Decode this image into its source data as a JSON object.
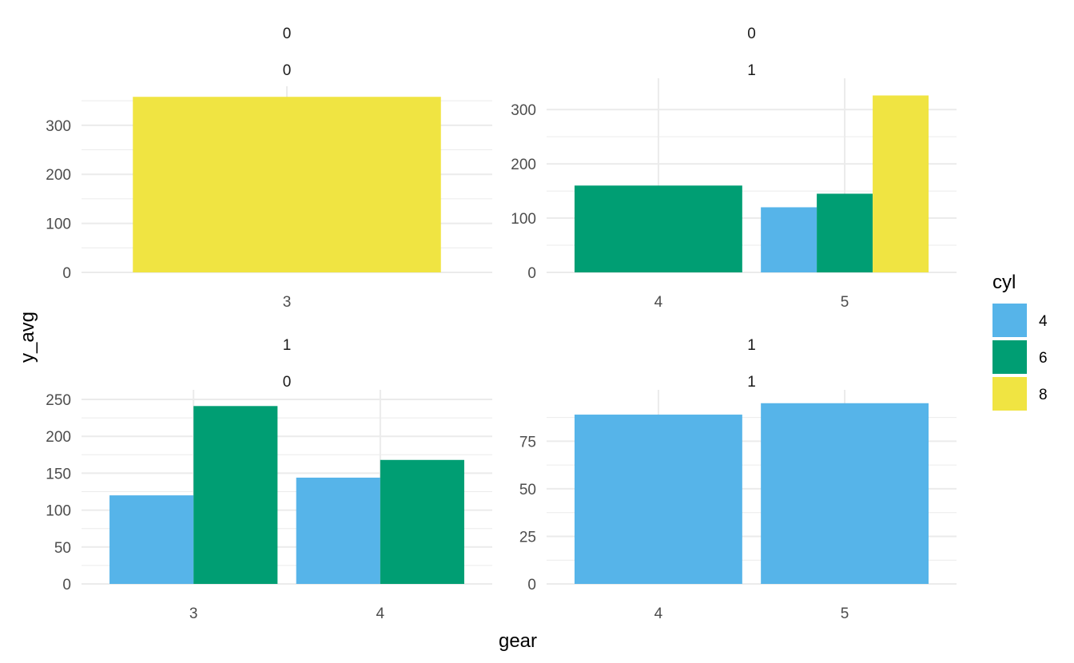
{
  "chart_data": {
    "type": "bar",
    "xlabel": "gear",
    "ylabel": "y_avg",
    "legend": {
      "title": "cyl",
      "placement": "right",
      "entries": [
        {
          "label": "4",
          "color": "#56B4E9"
        },
        {
          "label": "6",
          "color": "#009E73"
        },
        {
          "label": "8",
          "color": "#F0E442"
        }
      ]
    },
    "grid": true,
    "panels": [
      {
        "strip_top": "0",
        "strip_bottom": "0",
        "categories": [
          "3"
        ],
        "ylim": [
          0,
          360
        ],
        "yticks": [
          0,
          100,
          200,
          300
        ],
        "series": [
          {
            "name": "8",
            "values": [
              358
            ]
          }
        ]
      },
      {
        "strip_top": "0",
        "strip_bottom": "1",
        "categories": [
          "4",
          "5"
        ],
        "ylim": [
          0,
          340
        ],
        "yticks": [
          0,
          100,
          200,
          300
        ],
        "series": [
          {
            "name": "4",
            "values": [
              null,
              120
            ]
          },
          {
            "name": "6",
            "values": [
              160,
              145
            ]
          },
          {
            "name": "8",
            "values": [
              null,
              326
            ]
          }
        ]
      },
      {
        "strip_top": "1",
        "strip_bottom": "0",
        "categories": [
          "3",
          "4"
        ],
        "ylim": [
          0,
          250
        ],
        "yticks": [
          0,
          50,
          100,
          150,
          200,
          250
        ],
        "series": [
          {
            "name": "4",
            "values": [
              120,
              144
            ]
          },
          {
            "name": "6",
            "values": [
              241,
              168
            ]
          }
        ]
      },
      {
        "strip_top": "1",
        "strip_bottom": "1",
        "categories": [
          "4",
          "5"
        ],
        "ylim": [
          0,
          97
        ],
        "yticks": [
          0,
          25,
          50,
          75
        ],
        "series": [
          {
            "name": "4",
            "values": [
              89,
              95
            ]
          }
        ]
      }
    ]
  }
}
